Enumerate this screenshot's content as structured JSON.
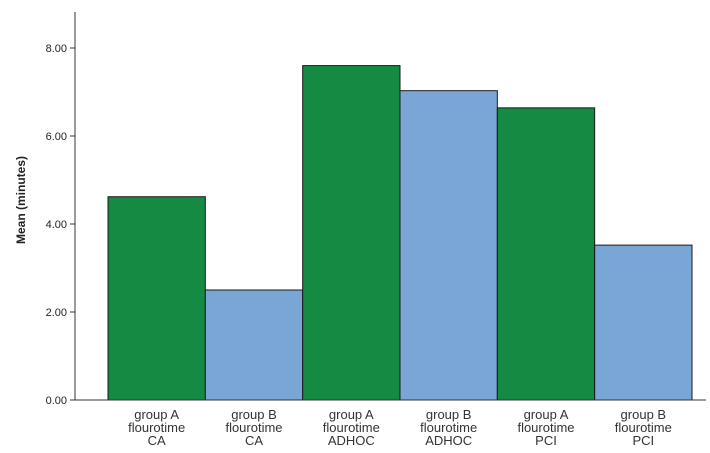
{
  "chart_data": {
    "type": "bar",
    "title": "",
    "xlabel": "",
    "ylabel": "Mean (minutes)",
    "ylim": [
      0,
      8.8
    ],
    "yticks": [
      "0.00",
      "2.00",
      "4.00",
      "6.00",
      "8.00"
    ],
    "ytick_values": [
      0,
      2,
      4,
      6,
      8
    ],
    "categories": [
      "group A flourotime CA",
      "group B flourotime CA",
      "group A flourotime ADHOC",
      "group B flourotime ADHOC",
      "group A flourotime PCI",
      "group B flourotime PCI"
    ],
    "category_lines": [
      [
        "group A",
        "flourotime",
        "CA"
      ],
      [
        "group B",
        "flourotime",
        "CA"
      ],
      [
        "group A",
        "flourotime",
        "ADHOC"
      ],
      [
        "group B",
        "flourotime",
        "ADHOC"
      ],
      [
        "group A",
        "flourotime",
        "PCI"
      ],
      [
        "group B",
        "flourotime",
        "PCI"
      ]
    ],
    "values": [
      4.62,
      2.5,
      7.6,
      7.03,
      6.64,
      3.52
    ],
    "bar_colors": [
      "#148a43",
      "#7aa6d6",
      "#148a43",
      "#7aa6d6",
      "#148a43",
      "#7aa6d6"
    ],
    "bar_edge_color": "#1a1a1a",
    "grid": false,
    "legend": "none"
  }
}
